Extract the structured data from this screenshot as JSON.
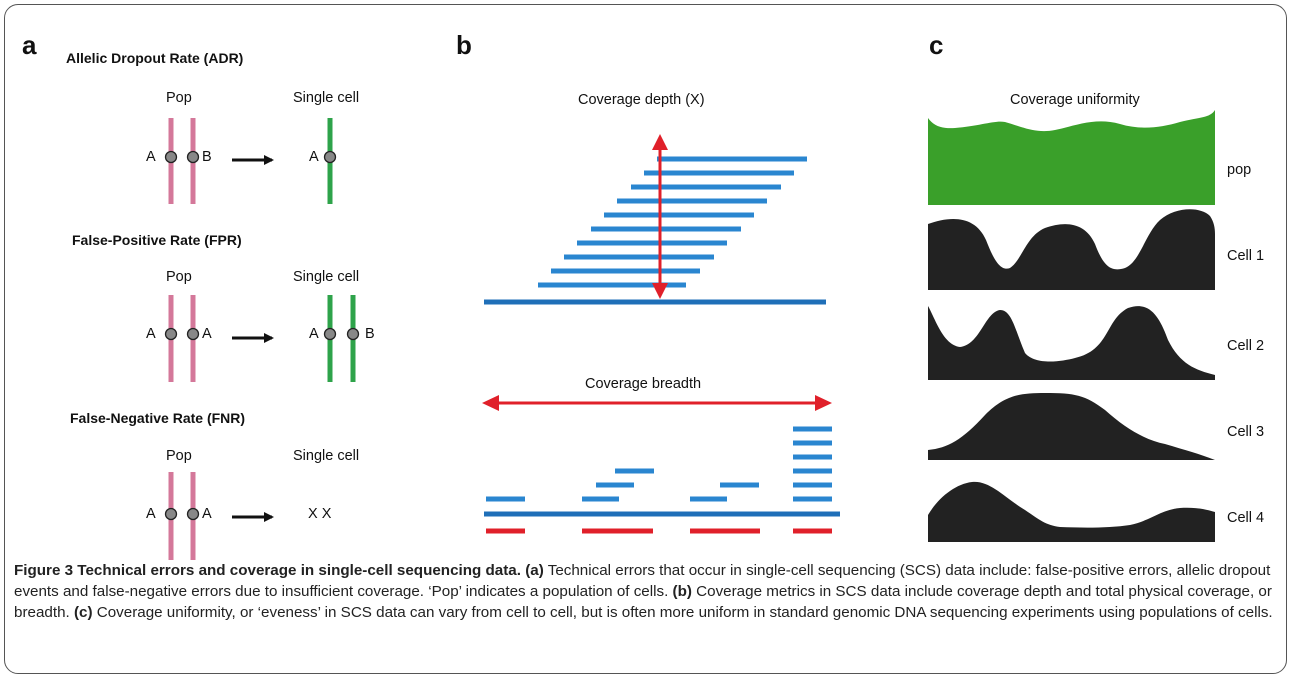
{
  "panels": {
    "a": {
      "letter": "a",
      "sections": [
        {
          "title": "Allelic Dropout Rate (ADR)",
          "pop_label": "Pop",
          "single_label": "Single cell",
          "pop_alleles": [
            "A",
            "B"
          ],
          "single_alleles": [
            "A"
          ],
          "single_text": ""
        },
        {
          "title": "False-Positive Rate (FPR)",
          "pop_label": "Pop",
          "single_label": "Single cell",
          "pop_alleles": [
            "A",
            "A"
          ],
          "single_alleles": [
            "A",
            "B"
          ],
          "single_text": ""
        },
        {
          "title": "False-Negative Rate (FNR)",
          "pop_label": "Pop",
          "single_label": "Single cell",
          "pop_alleles": [
            "A",
            "A"
          ],
          "single_alleles": [],
          "single_text": "X X"
        }
      ]
    },
    "b": {
      "letter": "b",
      "depth_title": "Coverage depth (X)",
      "breadth_title": "Coverage breadth"
    },
    "c": {
      "letter": "c",
      "title": "Coverage uniformity",
      "tracks": [
        {
          "label": "pop",
          "color": "#3aa02a"
        },
        {
          "label": "Cell 1",
          "color": "#222222"
        },
        {
          "label": "Cell 2",
          "color": "#222222"
        },
        {
          "label": "Cell 3",
          "color": "#222222"
        },
        {
          "label": "Cell 4",
          "color": "#222222"
        }
      ]
    }
  },
  "colors": {
    "pop_chromosome": "#d4789a",
    "single_chromosome": "#2ea34a",
    "read": "#2a86d0",
    "reference": "#1f6fb8",
    "arrow": "#e0202a",
    "covered_region": "#e0202a",
    "allele_dot": "#888888"
  },
  "caption": {
    "figure_label": "Figure 3 Technical errors and coverage in single-cell sequencing data.",
    "a_label": "(a)",
    "a_text": " Technical errors that occur in single-cell sequencing (SCS) data include: false-positive errors, allelic dropout events and false-negative errors due to insufficient coverage. ‘Pop’ indicates a population of cells. ",
    "b_label": "(b)",
    "b_text": " Coverage metrics in SCS data include coverage depth and total physical coverage, or breadth. ",
    "c_label": "(c)",
    "c_text": " Coverage uniformity, or ‘eveness’ in SCS data can vary from cell to cell, but is often more uniform in standard genomic DNA sequencing experiments using populations of cells."
  }
}
